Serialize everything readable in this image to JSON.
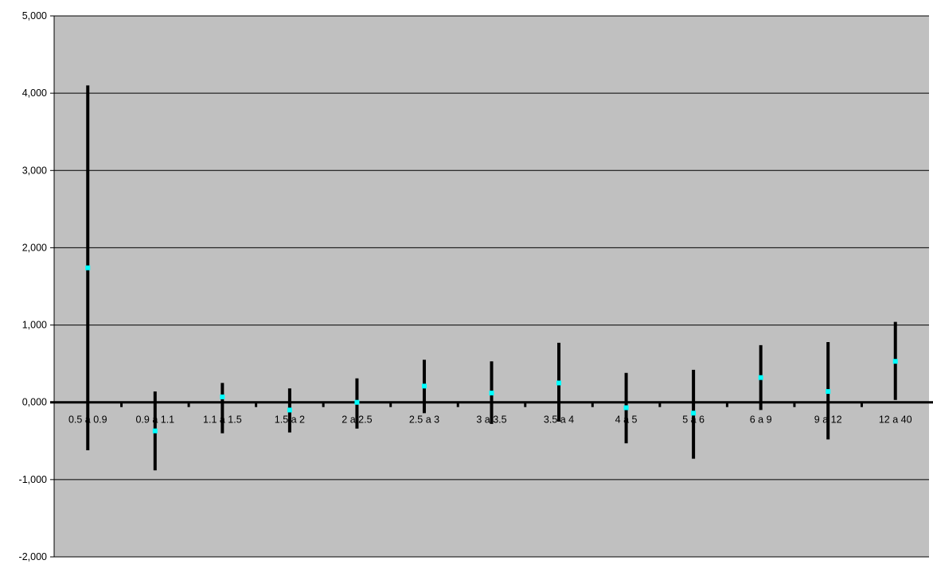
{
  "chart_data": {
    "type": "errorbar",
    "title": "",
    "xlabel": "",
    "ylabel": "",
    "ylim": [
      -2,
      5
    ],
    "yticks": [
      {
        "value": 5,
        "label": "5,000"
      },
      {
        "value": 4,
        "label": "4,000"
      },
      {
        "value": 3,
        "label": "3,000"
      },
      {
        "value": 2,
        "label": "2,000"
      },
      {
        "value": 1,
        "label": "1,000"
      },
      {
        "value": 0,
        "label": "0,000"
      },
      {
        "value": -1,
        "label": "-1,000"
      },
      {
        "value": -2,
        "label": "-2,000"
      }
    ],
    "grid": true,
    "legend": "none",
    "categories": [
      "0.5 a 0.9",
      "0.9 a 1.1",
      "1.1 a 1.5",
      "1.5 a 2",
      "2 a 2.5",
      "2.5 a 3",
      "3 a 3.5",
      "3.5 a 4",
      "4 a 5",
      "5 a 6",
      "6 a 9",
      "9 a 12",
      "12 a 40"
    ],
    "series": [
      {
        "values": [
          1.74,
          -0.37,
          0.07,
          -0.1,
          0.0,
          0.21,
          0.12,
          0.25,
          -0.07,
          -0.14,
          0.32,
          0.14,
          0.53
        ],
        "lower": [
          -0.62,
          -0.88,
          -0.4,
          -0.39,
          -0.34,
          -0.14,
          -0.28,
          -0.25,
          -0.53,
          -0.73,
          -0.1,
          -0.48,
          0.03
        ],
        "upper": [
          4.1,
          0.14,
          0.25,
          0.18,
          0.31,
          0.55,
          0.53,
          0.77,
          0.38,
          0.42,
          0.74,
          0.78,
          1.04
        ]
      }
    ],
    "colors": {
      "plot_background": "#c0c0c0",
      "gridline": "#000000",
      "error_bar": "#000000",
      "point_marker": "#00ffff",
      "axis": "#000000"
    }
  }
}
